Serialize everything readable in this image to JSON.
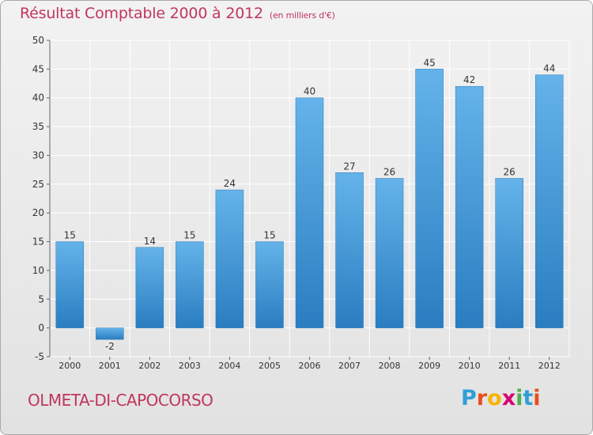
{
  "title": "Résultat Comptable 2000 à 2012",
  "subtitle": "(en milliers d'€)",
  "commune": "OLMETA-DI-CAPOCORSO",
  "brand": {
    "letters": [
      "P",
      "r",
      "o",
      "x",
      "i",
      "t",
      "i"
    ],
    "colors": [
      "#2f9fd8",
      "#e94e1b",
      "#f4b400",
      "#d6006e",
      "#4caf50",
      "#2f9fd8",
      "#e94e1b"
    ]
  },
  "colors": {
    "title": "#c0365c",
    "bar_light": "#64b3ea",
    "bar_dark": "#2a7dc0",
    "grid": "#ffffff",
    "axis_text": "#333333"
  },
  "chart_data": {
    "type": "bar",
    "categories": [
      "2000",
      "2001",
      "2002",
      "2003",
      "2004",
      "2005",
      "2006",
      "2007",
      "2008",
      "2009",
      "2010",
      "2011",
      "2012"
    ],
    "values": [
      15,
      -2,
      14,
      15,
      24,
      15,
      40,
      27,
      26,
      45,
      42,
      26,
      44
    ],
    "ylim": [
      -5,
      50
    ],
    "yticks": [
      -5,
      0,
      5,
      10,
      15,
      20,
      25,
      30,
      35,
      40,
      45,
      50
    ],
    "grid": true
  }
}
